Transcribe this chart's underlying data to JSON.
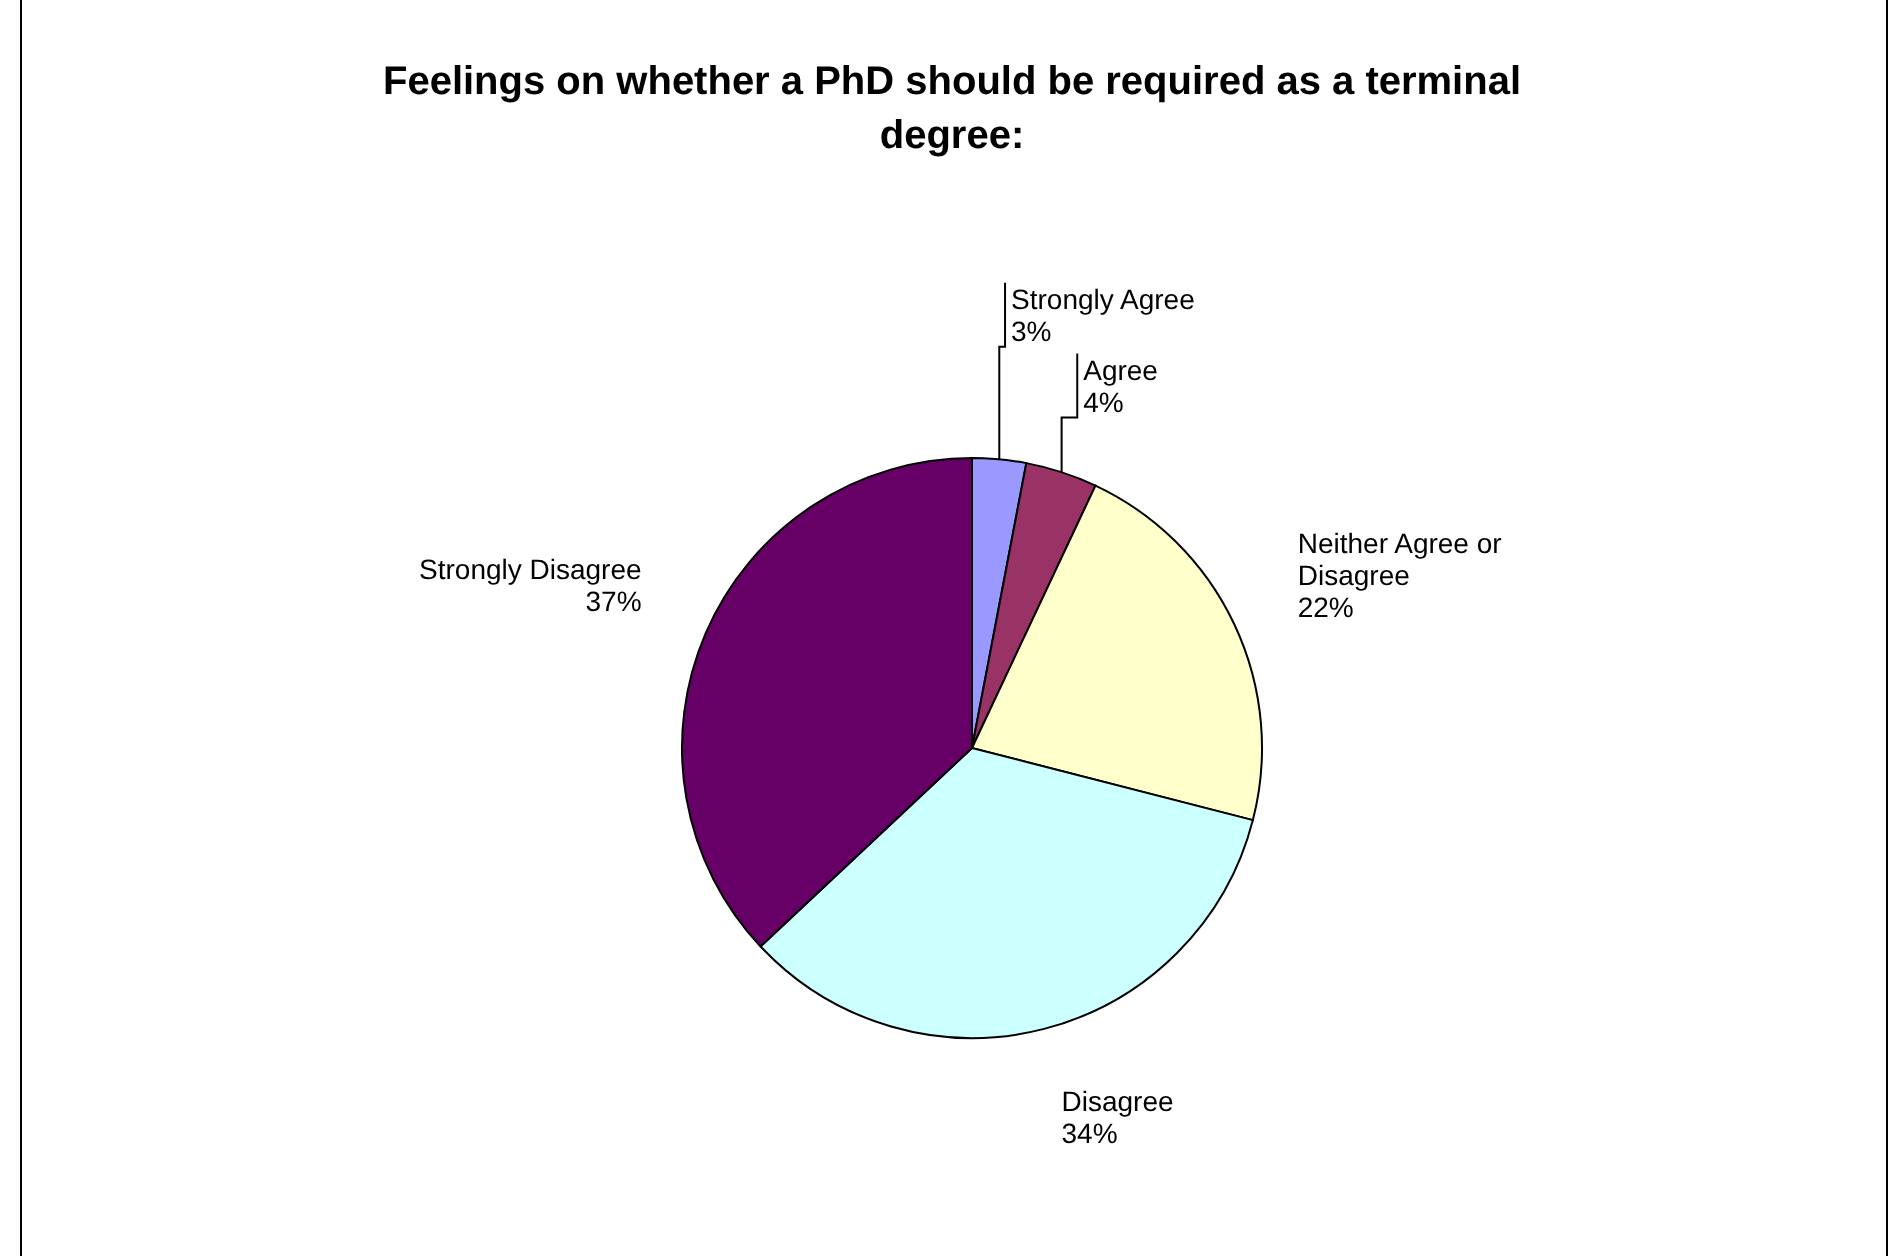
{
  "chart_data": {
    "type": "pie",
    "title": "Feelings on whether a PhD should be required as a terminal degree:",
    "categories": [
      "Strongly Agree",
      "Agree",
      "Neither Agree or Disagree",
      "Disagree",
      "Strongly Disagree"
    ],
    "values": [
      3,
      4,
      22,
      34,
      37
    ],
    "colors": [
      "#9999ff",
      "#993366",
      "#ffffcc",
      "#ccffff",
      "#660066"
    ],
    "value_labels": [
      "3%",
      "4%",
      "22%",
      "34%",
      "37%"
    ],
    "legend": false
  }
}
